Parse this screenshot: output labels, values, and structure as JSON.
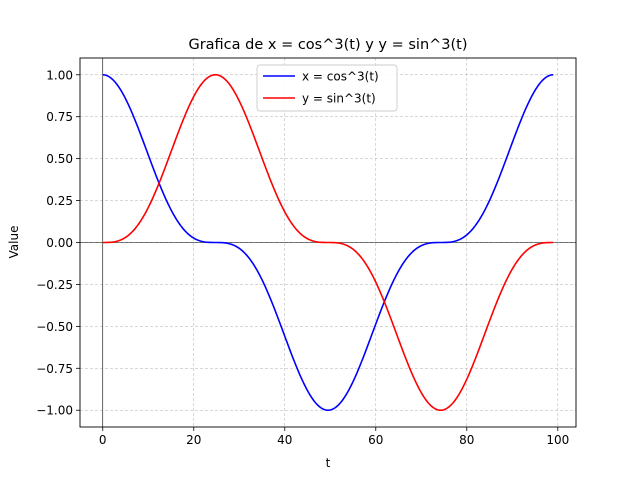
{
  "chart_data": {
    "type": "line",
    "title": "Grafica de x = cos^3(t) y y = sin^3(t)",
    "xlabel": "t",
    "ylabel": "Value",
    "xlim": [
      -5,
      104
    ],
    "ylim": [
      -1.1,
      1.1
    ],
    "x_range": [
      0,
      99
    ],
    "x_ticks": [
      0,
      20,
      40,
      60,
      80,
      100
    ],
    "x_tick_labels": [
      "0",
      "20",
      "40",
      "60",
      "80",
      "100"
    ],
    "y_ticks": [
      -1.0,
      -0.75,
      -0.5,
      -0.25,
      0.0,
      0.25,
      0.5,
      0.75,
      1.0
    ],
    "y_tick_labels": [
      "−1.00",
      "−0.75",
      "−0.50",
      "−0.25",
      "0.00",
      "0.25",
      "0.50",
      "0.75",
      "1.00"
    ],
    "grid": true,
    "legend_position": "top-center",
    "series": [
      {
        "name": "x = cos^3(t)",
        "color": "#0000ff",
        "x": [
          0,
          4,
          8,
          12,
          16,
          20,
          24,
          28,
          32,
          36,
          40,
          44,
          48,
          52,
          56,
          60,
          64,
          68,
          72,
          76,
          80,
          84,
          88,
          92,
          96,
          99
        ],
        "y": [
          1.0,
          0.904,
          0.653,
          0.358,
          0.131,
          0.022,
          0.0,
          -0.016,
          -0.111,
          -0.322,
          -0.613,
          -0.881,
          -0.998,
          -0.926,
          -0.692,
          -0.395,
          -0.155,
          -0.031,
          0.0,
          0.011,
          0.092,
          0.287,
          0.573,
          0.856,
          0.993,
          1.0
        ]
      },
      {
        "name": "y = sin^3(t)",
        "color": "#ff0000",
        "x": [
          0,
          4,
          8,
          12,
          16,
          20,
          24,
          28,
          32,
          36,
          40,
          44,
          48,
          52,
          56,
          60,
          64,
          68,
          72,
          76,
          80,
          84,
          88,
          92,
          96,
          99
        ],
        "y": [
          0.0,
          0.015,
          0.108,
          0.315,
          0.603,
          0.874,
          0.997,
          0.932,
          0.702,
          0.404,
          0.162,
          0.033,
          0.0,
          -0.01,
          -0.087,
          -0.279,
          -0.562,
          -0.848,
          -0.991,
          -0.96,
          -0.749,
          -0.444,
          -0.188,
          -0.043,
          -0.0,
          -0.0
        ]
      }
    ]
  }
}
